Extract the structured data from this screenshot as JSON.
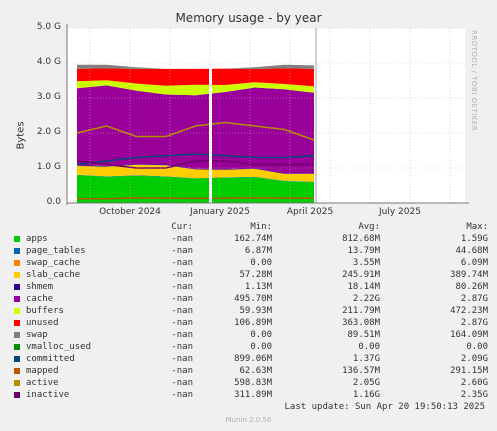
{
  "watermark": "RRDTOOL / TOBI OETIKER",
  "last_update": "Last update: Sun Apr 20 19:50:13 2025",
  "munin_version": "Munin 2.0.56",
  "legend_header": {
    "cur": "Cur:",
    "min": "Min:",
    "avg": "Avg:",
    "max": "Max:"
  },
  "chart_data": {
    "type": "area",
    "title": "Memory usage - by year",
    "ylabel": "Bytes",
    "ylim": [
      0,
      5
    ],
    "yunit": "G",
    "yticks": [
      "0.0",
      "1.0 G",
      "2.0 G",
      "3.0 G",
      "4.0 G",
      "5.0 G"
    ],
    "xticks": [
      "October 2024",
      "January 2025",
      "April 2025",
      "July 2025"
    ],
    "grid": true,
    "x": [
      "2024-08",
      "2024-09",
      "2024-10",
      "2024-11",
      "2024-12",
      "2025-01",
      "2025-02",
      "2025-03",
      "2025-04"
    ],
    "series": [
      {
        "name": "apps",
        "color": "#00cc00",
        "values": [
          0.8,
          0.75,
          0.78,
          0.75,
          0.7,
          0.72,
          0.74,
          0.62,
          0.6
        ],
        "cur": "-nan",
        "min": "162.74M",
        "avg": "812.68M",
        "max": "1.59G"
      },
      {
        "name": "page_tables",
        "color": "#0066b3",
        "values": [
          0.01,
          0.01,
          0.01,
          0.01,
          0.01,
          0.01,
          0.01,
          0.01,
          0.01
        ],
        "cur": "-nan",
        "min": "6.87M",
        "avg": "13.79M",
        "max": "44.68M"
      },
      {
        "name": "swap_cache",
        "color": "#ff8000",
        "values": [
          0,
          0,
          0,
          0,
          0,
          0,
          0,
          0,
          0
        ],
        "cur": "-nan",
        "min": "0.00",
        "avg": "3.55M",
        "max": "6.09M"
      },
      {
        "name": "slab_cache",
        "color": "#ffcc00",
        "values": [
          0.25,
          0.28,
          0.3,
          0.32,
          0.25,
          0.22,
          0.23,
          0.2,
          0.22
        ],
        "cur": "-nan",
        "min": "57.28M",
        "avg": "245.91M",
        "max": "389.74M"
      },
      {
        "name": "shmem",
        "color": "#330099",
        "values": [
          0.02,
          0.02,
          0.02,
          0.02,
          0.02,
          0.02,
          0.02,
          0.02,
          0.02
        ],
        "cur": "-nan",
        "min": "1.13M",
        "avg": "18.14M",
        "max": "80.26M"
      },
      {
        "name": "cache",
        "color": "#990099",
        "values": [
          2.2,
          2.3,
          2.1,
          2.0,
          2.1,
          2.2,
          2.3,
          2.4,
          2.3
        ],
        "cur": "-nan",
        "min": "495.70M",
        "avg": "2.22G",
        "max": "2.87G"
      },
      {
        "name": "buffers",
        "color": "#ccff00",
        "values": [
          0.2,
          0.15,
          0.2,
          0.25,
          0.3,
          0.2,
          0.15,
          0.15,
          0.18
        ],
        "cur": "-nan",
        "min": "59.93M",
        "avg": "211.79M",
        "max": "472.23M"
      },
      {
        "name": "unused",
        "color": "#ff0000",
        "values": [
          0.35,
          0.34,
          0.42,
          0.48,
          0.45,
          0.47,
          0.38,
          0.45,
          0.5
        ],
        "cur": "-nan",
        "min": "106.89M",
        "avg": "363.08M",
        "max": "2.87G"
      },
      {
        "name": "swap",
        "color": "#808080",
        "values": [
          0.12,
          0.1,
          0.05,
          0.0,
          0.0,
          0.0,
          0.05,
          0.1,
          0.1
        ],
        "cur": "-nan",
        "min": "0.00",
        "avg": "89.51M",
        "max": "164.09M"
      },
      {
        "name": "vmalloc_used",
        "color": "#008f00",
        "values": [
          0,
          0,
          0,
          0,
          0,
          0,
          0,
          0,
          0
        ],
        "cur": "-nan",
        "min": "0.00",
        "avg": "0.00",
        "max": "0.00"
      },
      {
        "name": "committed",
        "color": "#00487d",
        "values": [
          1.1,
          1.2,
          1.3,
          1.35,
          1.4,
          1.35,
          1.3,
          1.3,
          1.35
        ],
        "cur": "-nan",
        "min": "899.06M",
        "avg": "1.37G",
        "max": "2.09G"
      },
      {
        "name": "mapped",
        "color": "#b35a00",
        "values": [
          0.12,
          0.12,
          0.15,
          0.14,
          0.13,
          0.14,
          0.15,
          0.14,
          0.14
        ],
        "cur": "-nan",
        "min": "62.63M",
        "avg": "136.57M",
        "max": "291.15M"
      },
      {
        "name": "active",
        "color": "#b38f00",
        "values": [
          2.0,
          2.2,
          1.9,
          1.9,
          2.2,
          2.3,
          2.2,
          2.1,
          1.8
        ],
        "cur": "-nan",
        "min": "598.83M",
        "avg": "2.05G",
        "max": "2.60G"
      },
      {
        "name": "inactive",
        "color": "#6b006b",
        "values": [
          1.2,
          1.1,
          1.0,
          1.0,
          1.2,
          1.2,
          1.1,
          1.1,
          1.1
        ],
        "cur": "-nan",
        "min": "311.89M",
        "avg": "1.16G",
        "max": "2.35G"
      }
    ]
  }
}
